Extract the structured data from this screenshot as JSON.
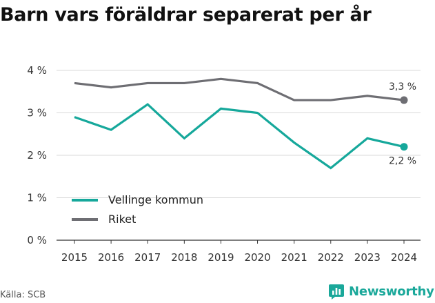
{
  "title": "Barn vars föräldrar separerat per år",
  "source": "Källa: SCB",
  "brand": {
    "name": "Newsworthy",
    "icon": "newsworthy-chart-bubble-icon",
    "color": "#1aa89a"
  },
  "chart_data": {
    "type": "line",
    "x": [
      "2015",
      "2016",
      "2017",
      "2018",
      "2019",
      "2020",
      "2021",
      "2022",
      "2023",
      "2024"
    ],
    "ylim": [
      0,
      4
    ],
    "yticks": [
      0,
      1,
      2,
      3,
      4
    ],
    "ytick_labels": [
      "0 %",
      "1 %",
      "2 %",
      "3 %",
      "4 %"
    ],
    "grid": "horizontal",
    "legend": "bottom-left",
    "series": [
      {
        "name": "Vellinge kommun",
        "color": "#16a89b",
        "values": [
          2.9,
          2.6,
          3.2,
          2.4,
          3.1,
          3.0,
          2.3,
          1.7,
          2.4,
          2.2
        ],
        "end_label": "2,2 %"
      },
      {
        "name": "Riket",
        "color": "#6e6e73",
        "values": [
          3.7,
          3.6,
          3.7,
          3.7,
          3.8,
          3.7,
          3.3,
          3.3,
          3.4,
          3.3
        ],
        "end_label": "3,3 %"
      }
    ]
  }
}
